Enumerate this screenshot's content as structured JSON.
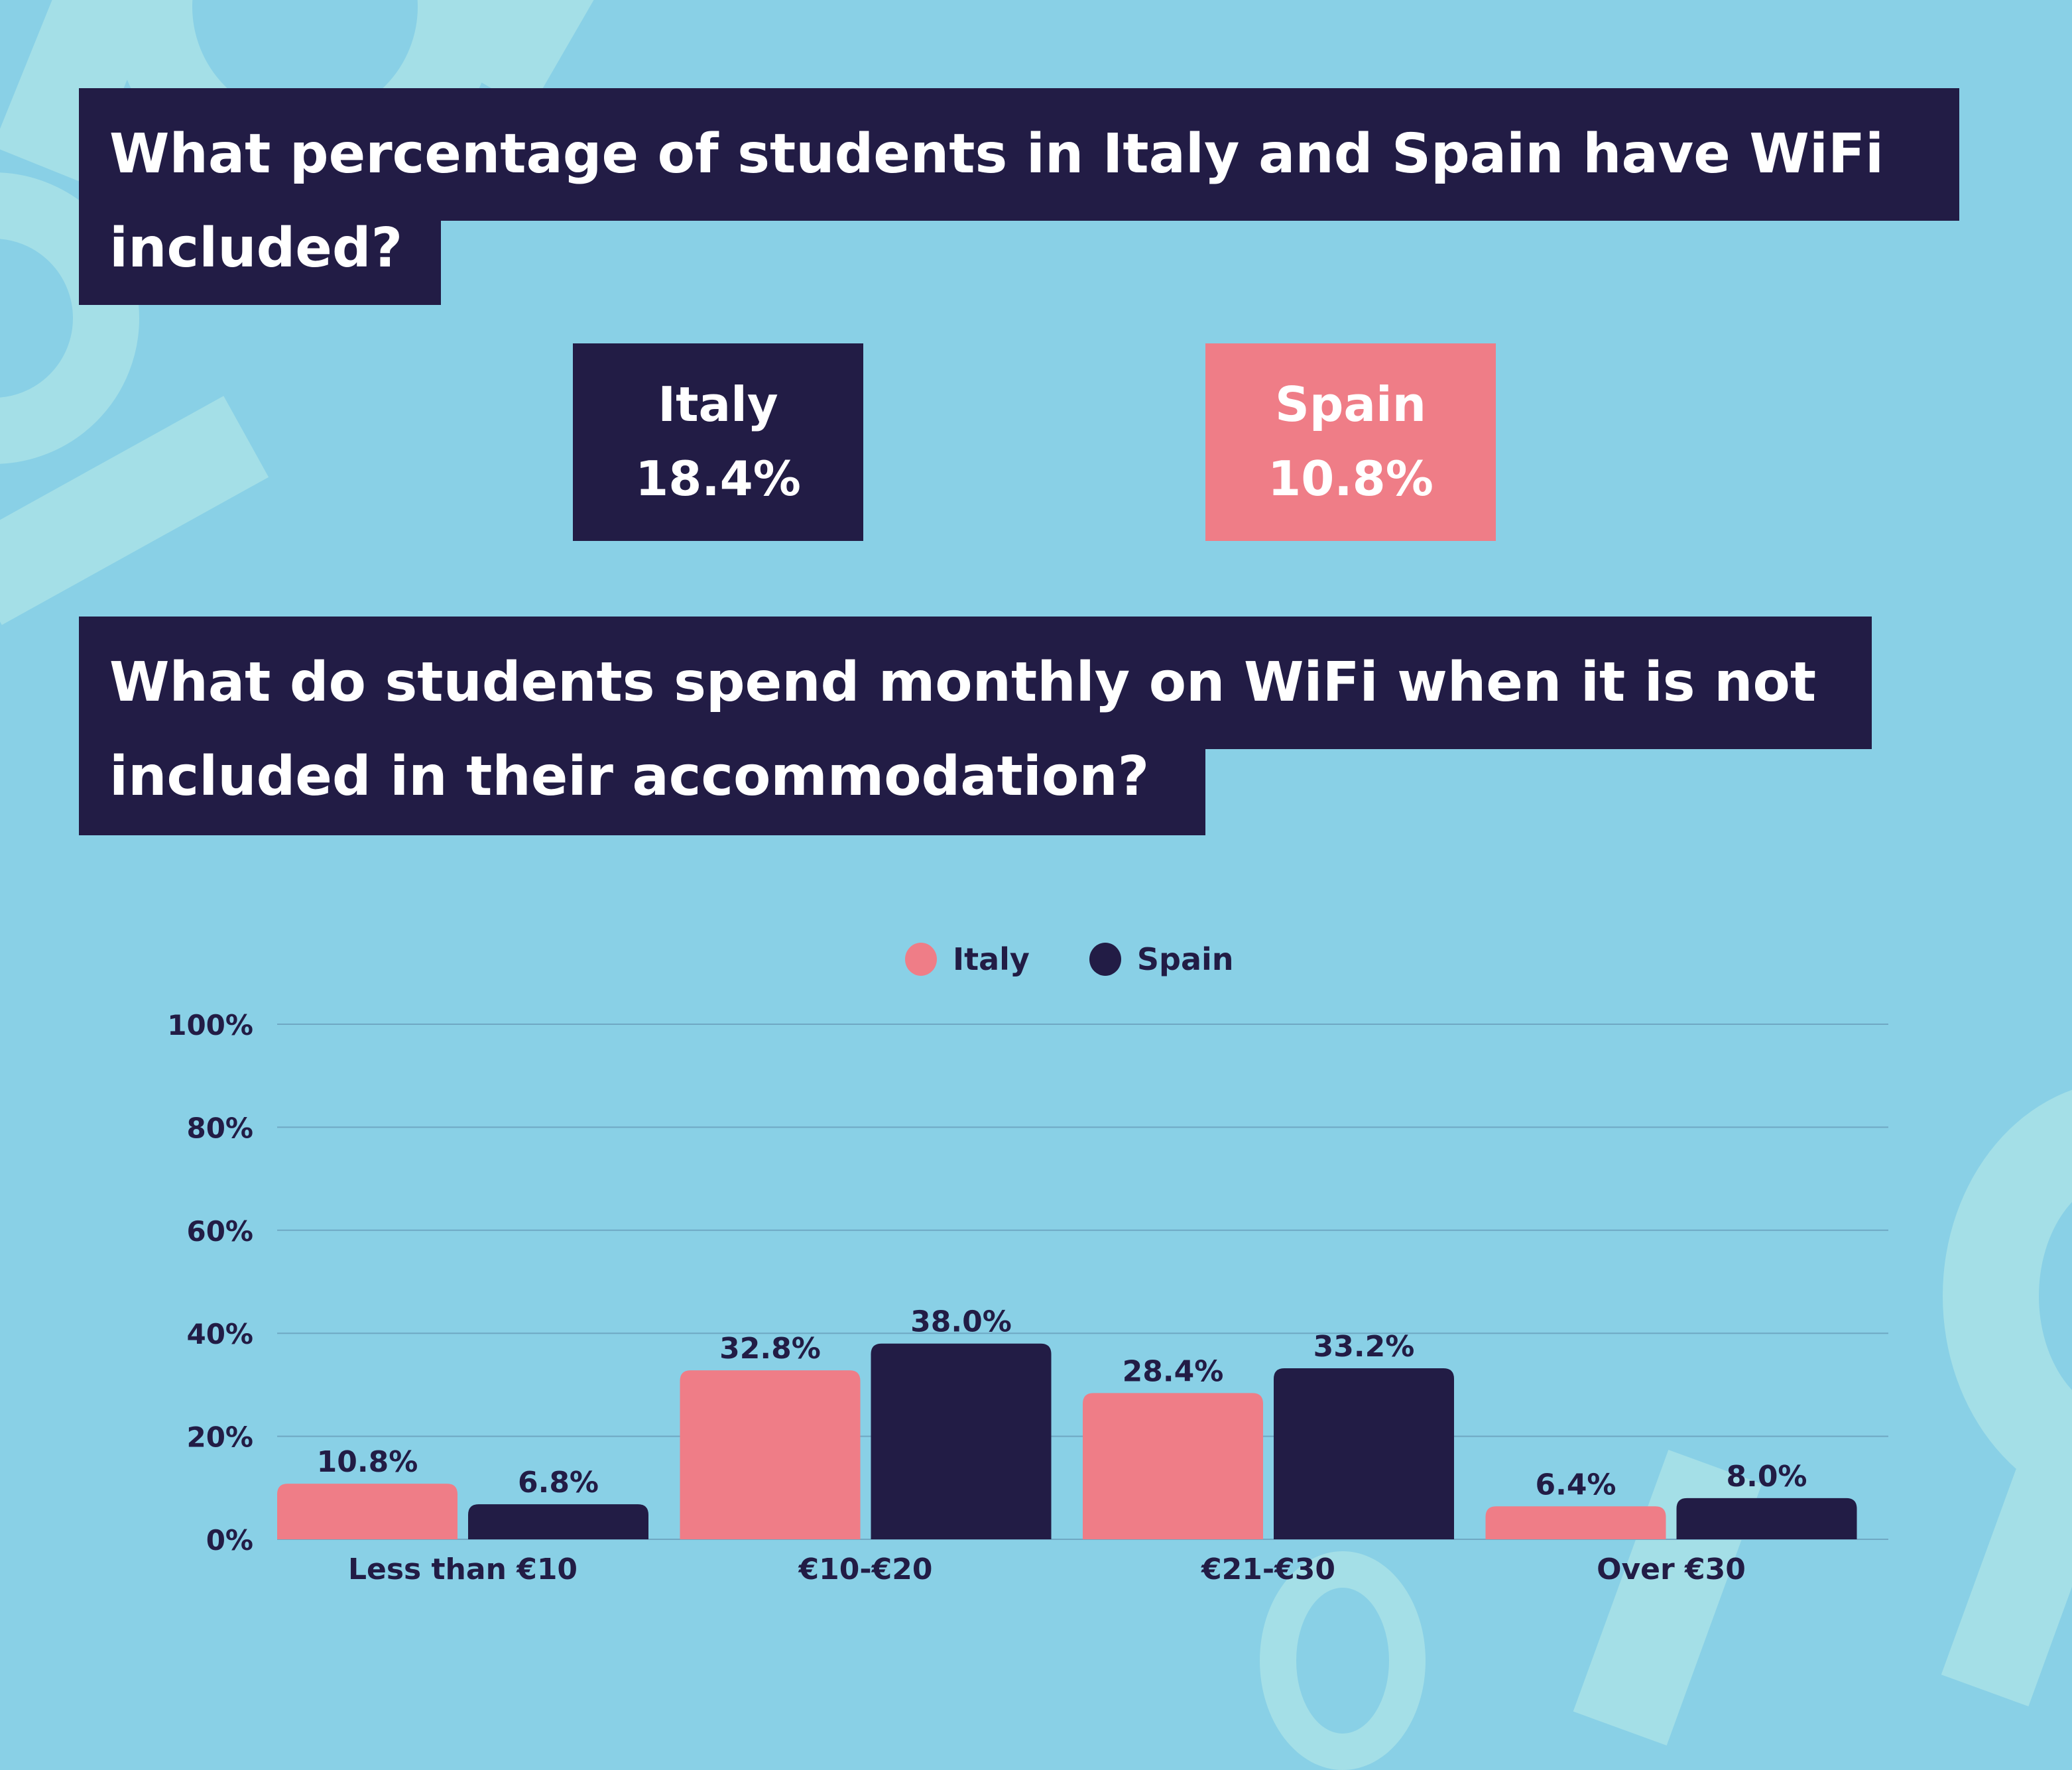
{
  "colors": {
    "background": "#89D0E6",
    "navy": "#221C45",
    "pink": "#EF7D87",
    "decor": "#A4DFE7",
    "gridline": "#6FA8C3"
  },
  "question1": {
    "line1": "What percentage of students in Italy and Spain have WiFi",
    "line2": "included?"
  },
  "stats": [
    {
      "country": "Italy",
      "value": "18.4%"
    },
    {
      "country": "Spain",
      "value": "10.8%"
    }
  ],
  "question2": {
    "line1": "What do students spend monthly on WiFi when it is not",
    "line2": "included in their accommodation?"
  },
  "chart_data": {
    "type": "bar",
    "title": "What do students spend monthly on WiFi when it is not included in their accommodation?",
    "categories": [
      "Less than €10",
      "€10-€20",
      "€21-€30",
      "Over €30"
    ],
    "series": [
      {
        "name": "Italy",
        "color": "#EF7D87",
        "values": [
          10.8,
          32.8,
          28.4,
          6.4
        ],
        "labels": [
          "10.8%",
          "32.8%",
          "28.4%",
          "6.4%"
        ]
      },
      {
        "name": "Spain",
        "color": "#221C45",
        "values": [
          6.8,
          38.0,
          33.2,
          8.0
        ],
        "labels": [
          "6.8%",
          "38.0%",
          "33.2%",
          "8.0%"
        ]
      }
    ],
    "yticks": [
      0,
      20,
      40,
      60,
      80,
      100
    ],
    "ytick_labels": [
      "0%",
      "20%",
      "40%",
      "60%",
      "80%",
      "100%"
    ],
    "ylim": [
      0,
      100
    ],
    "xlabel": "",
    "ylabel": "",
    "grid": true,
    "legend": "top-center"
  }
}
